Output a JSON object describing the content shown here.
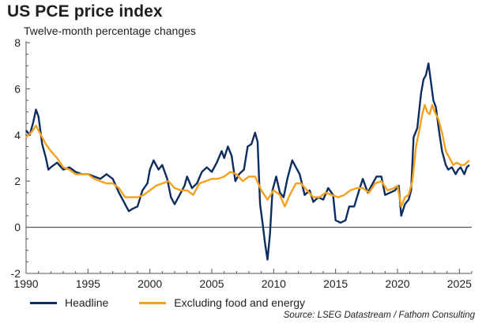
{
  "title": "US PCE price index",
  "subtitle": "Twelve-month percentage changes",
  "source": "Source: LSEG Datastream / Fathom Consulting",
  "chart_data": {
    "type": "line",
    "xlim": [
      1990,
      2026
    ],
    "ylim": [
      -2,
      8
    ],
    "x_ticks": [
      1990,
      1995,
      2000,
      2005,
      2010,
      2015,
      2020,
      2025
    ],
    "y_ticks": [
      -2,
      0,
      2,
      4,
      6,
      8
    ],
    "grid": false,
    "legend_position": "bottom",
    "series": [
      {
        "name": "Headline",
        "color": "#0d2d5e",
        "points": [
          [
            1990.0,
            4.2
          ],
          [
            1990.3,
            4.0
          ],
          [
            1990.6,
            4.6
          ],
          [
            1990.8,
            5.1
          ],
          [
            1991.0,
            4.8
          ],
          [
            1991.3,
            3.6
          ],
          [
            1991.6,
            3.0
          ],
          [
            1991.8,
            2.5
          ],
          [
            1992.0,
            2.6
          ],
          [
            1992.5,
            2.8
          ],
          [
            1993.0,
            2.5
          ],
          [
            1993.5,
            2.6
          ],
          [
            1994.0,
            2.4
          ],
          [
            1994.5,
            2.3
          ],
          [
            1995.0,
            2.3
          ],
          [
            1995.5,
            2.2
          ],
          [
            1996.0,
            2.1
          ],
          [
            1996.5,
            2.3
          ],
          [
            1997.0,
            2.1
          ],
          [
            1997.5,
            1.5
          ],
          [
            1998.0,
            1.0
          ],
          [
            1998.3,
            0.7
          ],
          [
            1998.6,
            0.8
          ],
          [
            1999.0,
            0.9
          ],
          [
            1999.4,
            1.6
          ],
          [
            1999.8,
            1.9
          ],
          [
            2000.0,
            2.5
          ],
          [
            2000.3,
            2.9
          ],
          [
            2000.7,
            2.5
          ],
          [
            2001.0,
            2.7
          ],
          [
            2001.4,
            2.1
          ],
          [
            2001.7,
            1.3
          ],
          [
            2002.0,
            1.0
          ],
          [
            2002.4,
            1.4
          ],
          [
            2002.8,
            1.8
          ],
          [
            2003.0,
            2.2
          ],
          [
            2003.4,
            1.7
          ],
          [
            2003.8,
            1.9
          ],
          [
            2004.2,
            2.4
          ],
          [
            2004.6,
            2.6
          ],
          [
            2005.0,
            2.4
          ],
          [
            2005.4,
            2.8
          ],
          [
            2005.8,
            3.3
          ],
          [
            2006.0,
            3.0
          ],
          [
            2006.3,
            3.5
          ],
          [
            2006.6,
            3.1
          ],
          [
            2006.9,
            2.0
          ],
          [
            2007.2,
            2.3
          ],
          [
            2007.6,
            2.5
          ],
          [
            2007.9,
            3.5
          ],
          [
            2008.2,
            3.6
          ],
          [
            2008.5,
            4.1
          ],
          [
            2008.7,
            3.7
          ],
          [
            2008.9,
            1.0
          ],
          [
            2009.1,
            0.2
          ],
          [
            2009.3,
            -0.7
          ],
          [
            2009.5,
            -1.4
          ],
          [
            2009.7,
            -0.3
          ],
          [
            2009.9,
            1.6
          ],
          [
            2010.2,
            2.2
          ],
          [
            2010.5,
            1.5
          ],
          [
            2010.8,
            1.3
          ],
          [
            2011.1,
            2.1
          ],
          [
            2011.5,
            2.9
          ],
          [
            2011.8,
            2.6
          ],
          [
            2012.1,
            2.3
          ],
          [
            2012.5,
            1.4
          ],
          [
            2012.9,
            1.6
          ],
          [
            2013.2,
            1.1
          ],
          [
            2013.6,
            1.3
          ],
          [
            2014.0,
            1.2
          ],
          [
            2014.4,
            1.7
          ],
          [
            2014.8,
            1.4
          ],
          [
            2015.0,
            0.3
          ],
          [
            2015.4,
            0.2
          ],
          [
            2015.8,
            0.3
          ],
          [
            2016.1,
            0.9
          ],
          [
            2016.5,
            0.9
          ],
          [
            2016.9,
            1.6
          ],
          [
            2017.2,
            2.1
          ],
          [
            2017.6,
            1.5
          ],
          [
            2017.9,
            1.8
          ],
          [
            2018.3,
            2.2
          ],
          [
            2018.7,
            2.2
          ],
          [
            2019.0,
            1.4
          ],
          [
            2019.4,
            1.5
          ],
          [
            2019.8,
            1.6
          ],
          [
            2020.1,
            1.8
          ],
          [
            2020.3,
            0.5
          ],
          [
            2020.6,
            1.0
          ],
          [
            2020.9,
            1.2
          ],
          [
            2021.1,
            1.6
          ],
          [
            2021.3,
            3.9
          ],
          [
            2021.6,
            4.3
          ],
          [
            2021.9,
            5.8
          ],
          [
            2022.1,
            6.4
          ],
          [
            2022.3,
            6.6
          ],
          [
            2022.5,
            7.1
          ],
          [
            2022.7,
            6.3
          ],
          [
            2022.9,
            5.5
          ],
          [
            2023.1,
            5.2
          ],
          [
            2023.4,
            4.0
          ],
          [
            2023.6,
            3.3
          ],
          [
            2023.9,
            2.7
          ],
          [
            2024.1,
            2.5
          ],
          [
            2024.4,
            2.6
          ],
          [
            2024.7,
            2.3
          ],
          [
            2024.9,
            2.5
          ],
          [
            2025.1,
            2.6
          ],
          [
            2025.4,
            2.3
          ],
          [
            2025.6,
            2.6
          ],
          [
            2025.8,
            2.7
          ]
        ]
      },
      {
        "name": "Excluding food and energy",
        "color": "#f4a11d",
        "points": [
          [
            1990.0,
            3.9
          ],
          [
            1990.4,
            4.1
          ],
          [
            1990.8,
            4.4
          ],
          [
            1991.2,
            4.0
          ],
          [
            1991.6,
            3.6
          ],
          [
            1992.0,
            3.3
          ],
          [
            1992.5,
            3.0
          ],
          [
            1993.0,
            2.6
          ],
          [
            1993.5,
            2.5
          ],
          [
            1994.0,
            2.3
          ],
          [
            1994.5,
            2.3
          ],
          [
            1995.0,
            2.3
          ],
          [
            1995.5,
            2.1
          ],
          [
            1996.0,
            2.0
          ],
          [
            1996.5,
            1.9
          ],
          [
            1997.0,
            1.9
          ],
          [
            1997.5,
            1.7
          ],
          [
            1998.0,
            1.3
          ],
          [
            1998.5,
            1.3
          ],
          [
            1999.0,
            1.3
          ],
          [
            1999.5,
            1.4
          ],
          [
            2000.0,
            1.6
          ],
          [
            2000.5,
            1.8
          ],
          [
            2001.0,
            1.9
          ],
          [
            2001.5,
            2.0
          ],
          [
            2002.0,
            1.7
          ],
          [
            2002.5,
            1.6
          ],
          [
            2003.0,
            1.6
          ],
          [
            2003.5,
            1.4
          ],
          [
            2004.0,
            1.9
          ],
          [
            2004.5,
            2.0
          ],
          [
            2005.0,
            2.1
          ],
          [
            2005.5,
            2.1
          ],
          [
            2006.0,
            2.2
          ],
          [
            2006.5,
            2.4
          ],
          [
            2007.0,
            2.3
          ],
          [
            2007.5,
            2.0
          ],
          [
            2008.0,
            2.2
          ],
          [
            2008.5,
            2.2
          ],
          [
            2009.0,
            1.6
          ],
          [
            2009.5,
            1.2
          ],
          [
            2010.0,
            1.6
          ],
          [
            2010.5,
            1.4
          ],
          [
            2010.9,
            0.9
          ],
          [
            2011.3,
            1.4
          ],
          [
            2011.8,
            1.9
          ],
          [
            2012.2,
            1.9
          ],
          [
            2012.7,
            1.6
          ],
          [
            2013.2,
            1.3
          ],
          [
            2013.7,
            1.3
          ],
          [
            2014.2,
            1.5
          ],
          [
            2014.7,
            1.4
          ],
          [
            2015.2,
            1.3
          ],
          [
            2015.7,
            1.4
          ],
          [
            2016.2,
            1.6
          ],
          [
            2016.7,
            1.7
          ],
          [
            2017.2,
            1.7
          ],
          [
            2017.7,
            1.5
          ],
          [
            2018.2,
            1.9
          ],
          [
            2018.7,
            2.0
          ],
          [
            2019.2,
            1.6
          ],
          [
            2019.7,
            1.7
          ],
          [
            2020.0,
            1.8
          ],
          [
            2020.3,
            0.9
          ],
          [
            2020.6,
            1.3
          ],
          [
            2020.9,
            1.4
          ],
          [
            2021.2,
            2.0
          ],
          [
            2021.5,
            3.5
          ],
          [
            2021.8,
            4.3
          ],
          [
            2022.0,
            4.9
          ],
          [
            2022.2,
            5.3
          ],
          [
            2022.4,
            5.0
          ],
          [
            2022.6,
            4.9
          ],
          [
            2022.8,
            5.3
          ],
          [
            2023.0,
            5.0
          ],
          [
            2023.3,
            4.7
          ],
          [
            2023.6,
            4.1
          ],
          [
            2023.9,
            3.3
          ],
          [
            2024.2,
            3.0
          ],
          [
            2024.5,
            2.7
          ],
          [
            2024.8,
            2.8
          ],
          [
            2025.1,
            2.7
          ],
          [
            2025.4,
            2.7
          ],
          [
            2025.8,
            2.9
          ]
        ]
      }
    ]
  }
}
